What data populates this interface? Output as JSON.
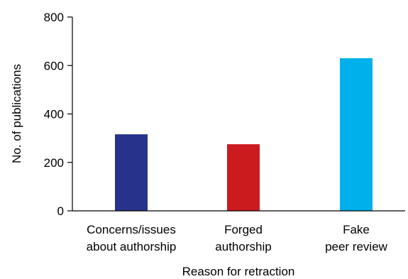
{
  "chart_data": {
    "type": "bar",
    "categories": [
      [
        "Concerns/issues",
        "about authorship"
      ],
      [
        "Forged",
        "authorship"
      ],
      [
        "Fake",
        "peer review"
      ]
    ],
    "values": [
      316,
      275,
      630
    ],
    "colors": [
      "#27338a",
      "#cc1b1f",
      "#00b0ea"
    ],
    "xlabel": "Reason for retraction",
    "ylabel": "No. of publications",
    "ylim": [
      0,
      800
    ],
    "yticks": [
      0,
      200,
      400,
      600,
      800
    ],
    "grid": false,
    "legend": "none"
  }
}
